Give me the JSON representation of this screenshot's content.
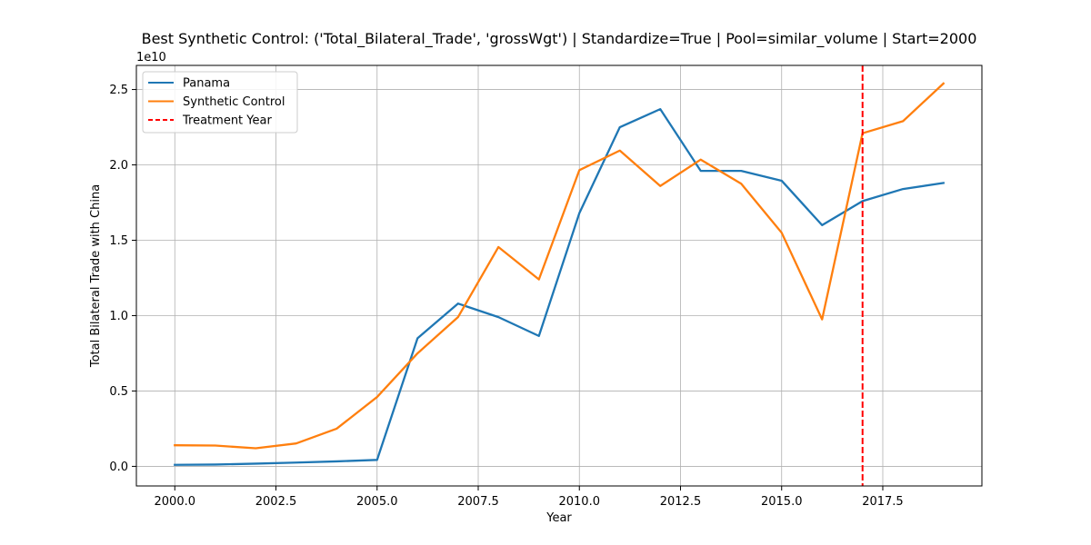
{
  "chart_data": {
    "type": "line",
    "title": "Best Synthetic Control: ('Total_Bilateral_Trade', 'grossWgt') | Standardize=True | Pool=similar_volume | Start=2000",
    "xlabel": "Year",
    "ylabel": "Total Bilateral Trade with China",
    "y_offset_label": "1e10",
    "xlim": [
      1999.05,
      2019.95
    ],
    "ylim": [
      -0.13,
      2.66
    ],
    "x_ticks": [
      2000,
      2002.5,
      2005,
      2007.5,
      2010,
      2012.5,
      2015,
      2017.5
    ],
    "x_tick_labels": [
      "2000.0",
      "2002.5",
      "2005.0",
      "2007.5",
      "2010.0",
      "2012.5",
      "2015.0",
      "2017.5"
    ],
    "y_ticks": [
      0,
      0.5,
      1.0,
      1.5,
      2.0,
      2.5
    ],
    "y_tick_labels": [
      "0.0",
      "0.5",
      "1.0",
      "1.5",
      "2.0",
      "2.5"
    ],
    "grid": true,
    "legend_position": "top-left",
    "x": [
      2000,
      2001,
      2002,
      2003,
      2004,
      2005,
      2006,
      2007,
      2008,
      2009,
      2010,
      2011,
      2012,
      2013,
      2014,
      2015,
      2016,
      2017,
      2018,
      2019
    ],
    "series": [
      {
        "name": "Panama",
        "color": "#1f77b4",
        "values": [
          0.01,
          0.012,
          0.018,
          0.025,
          0.033,
          0.043,
          0.85,
          1.08,
          0.99,
          0.865,
          1.68,
          2.25,
          2.37,
          1.96,
          1.96,
          1.895,
          1.6,
          1.76,
          1.84,
          1.88
        ]
      },
      {
        "name": "Synthetic Control",
        "color": "#ff7f0e",
        "values": [
          0.14,
          0.138,
          0.12,
          0.152,
          0.25,
          0.46,
          0.75,
          0.99,
          1.455,
          1.24,
          1.965,
          2.095,
          1.86,
          2.035,
          1.875,
          1.55,
          0.975,
          2.21,
          2.29,
          2.54
        ]
      }
    ],
    "treatment_line": {
      "name": "Treatment Year",
      "x": 2017,
      "color": "#ff0000"
    }
  }
}
